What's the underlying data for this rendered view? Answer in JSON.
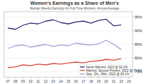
{
  "chart_data": {
    "type": "line",
    "title": "Women's Earnings as a Share of Men's",
    "subtitle": "Median Weekly Earnings for Full-Time Workers; Annual Average",
    "x": [
      2007,
      2008,
      2009,
      2010,
      2011,
      2012,
      2013,
      2014,
      2015,
      2016,
      2017,
      2018,
      2019,
      2020,
      2021,
      2022
    ],
    "xlim": [
      2006.5,
      2023.5
    ],
    "xticks": [
      {
        "value": 2007,
        "label": "07"
      },
      {
        "value": 2008,
        "label": "08"
      },
      {
        "value": 2009,
        "label": "09"
      },
      {
        "value": 2010,
        "label": "10"
      },
      {
        "value": 2011,
        "label": "11"
      },
      {
        "value": 2012,
        "label": "12"
      },
      {
        "value": 2013,
        "label": "13"
      },
      {
        "value": 2014,
        "label": "14"
      },
      {
        "value": 2015,
        "label": "15"
      },
      {
        "value": 2016,
        "label": "16"
      },
      {
        "value": 2017,
        "label": "17"
      },
      {
        "value": 2018,
        "label": "18"
      },
      {
        "value": 2019,
        "label": "19"
      },
      {
        "value": 2020,
        "label": "20"
      },
      {
        "value": 2021,
        "label": "21"
      },
      {
        "value": 2022,
        "label": "22"
      },
      {
        "value": 2023,
        "label": "23"
      }
    ],
    "ylim": [
      73,
      97
    ],
    "yticks": [
      {
        "value": 75,
        "label": "75%"
      },
      {
        "value": 80,
        "label": "80%"
      },
      {
        "value": 85,
        "label": "85%"
      },
      {
        "value": 90,
        "label": "90%"
      },
      {
        "value": 95,
        "label": "95%"
      }
    ],
    "grid": true,
    "legend": "lower right",
    "series": [
      {
        "name": "Never Married: 2022 @ 92.1%",
        "color": "#2b2a6e",
        "values": [
          91.0,
          90.5,
          92.0,
          92.8,
          92.5,
          93.5,
          94.0,
          93.0,
          92.5,
          93.2,
          93.5,
          92.8,
          93.8,
          94.2,
          91.8,
          92.1
        ]
      },
      {
        "name": "Married, Spouse Present: 2022 @ 79.8%",
        "color": "#d9483b",
        "values": [
          76.5,
          76.8,
          77.5,
          77.2,
          77.8,
          77.5,
          78.0,
          77.8,
          78.2,
          78.5,
          78.3,
          78.8,
          79.0,
          79.5,
          79.2,
          79.8
        ]
      },
      {
        "name": "Sep., Div., Wid.: 2022 @ 83.1%",
        "color": "#a79ad6",
        "values": [
          83.5,
          84.5,
          84.8,
          84.0,
          84.5,
          85.0,
          84.2,
          84.8,
          84.5,
          85.5,
          85.0,
          84.8,
          85.2,
          86.5,
          85.0,
          83.1
        ]
      }
    ]
  }
}
